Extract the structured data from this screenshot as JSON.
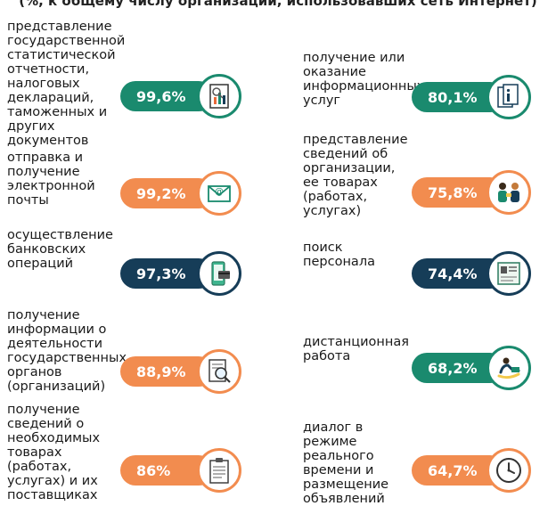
{
  "header": "(%, к общему числу организаций, использовавших сеть Интернет)",
  "colors": {
    "green": "#1a8a6e",
    "orange": "#f28c4f",
    "navy": "#163d58"
  },
  "left": [
    {
      "label": "представление государственной\nстатистической отчетности,\nналоговых деклараций,\nтаможенных и других\nдокументов",
      "value": "99,6%",
      "color": "green",
      "icon": "document-chart-icon"
    },
    {
      "label": "отправка и получение\nэлектронной  почты",
      "value": "99,2%",
      "color": "orange",
      "icon": "envelope-at-icon"
    },
    {
      "label": "осуществление банковских\nопераций",
      "value": "97,3%",
      "color": "navy",
      "icon": "phone-card-icon"
    },
    {
      "label": "получение информации о\nдеятельности государственных\nорганов (организаций)",
      "value": "88,9%",
      "color": "orange",
      "icon": "document-magnifier-icon"
    },
    {
      "label": "получение сведений о\nнеобходимых товарах\n(работах, услугах) и их\nпоставщиках",
      "value": "86%",
      "color": "orange",
      "icon": "clipboard-icon"
    }
  ],
  "right": [
    {
      "label": "получение или оказание\nинформационных услуг",
      "value": "80,1%",
      "color": "green",
      "icon": "documents-info-icon"
    },
    {
      "label": "представление сведений об\nорганизации, ее товарах\n(работах, услугах)",
      "value": "75,8%",
      "color": "orange",
      "icon": "two-people-icon"
    },
    {
      "label": "поиск персонала",
      "value": "74,4%",
      "color": "navy",
      "icon": "resume-icon"
    },
    {
      "label": "дистанционная работа",
      "value": "68,2%",
      "color": "green",
      "icon": "remote-worker-icon"
    },
    {
      "label": "диалог в режиме реального\nвремени и размещение\nобъявлений",
      "value": "64,7%",
      "color": "orange",
      "icon": "clock-icon"
    }
  ]
}
